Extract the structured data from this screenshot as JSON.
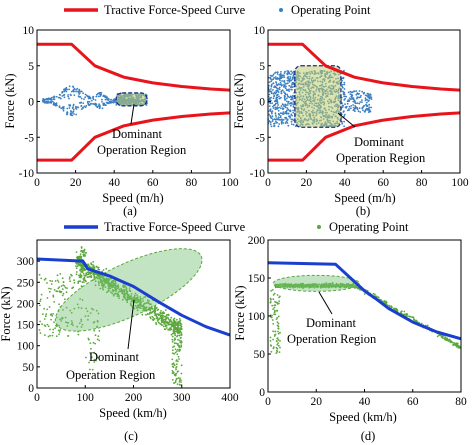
{
  "legend_top": {
    "curve_label": "Tractive Force-Speed Curve",
    "point_label": "Operating Point",
    "curve_color": "#e8141c",
    "point_color": "#3a7fc1"
  },
  "legend_bottom": {
    "curve_label": "Tractive Force-Speed Curve",
    "point_label": "Operating Point",
    "curve_color": "#1a3fcf",
    "point_color": "#5aa83a"
  },
  "chart_data": [
    {
      "panel": "(a)",
      "type": "line",
      "xlabel": "Speed (m/h)",
      "ylabel": "Force (kN)",
      "xlim": [
        0,
        100
      ],
      "ylim": [
        -10,
        10
      ],
      "xticks": [
        "0",
        "20",
        "40",
        "60",
        "80",
        "100"
      ],
      "yticks": [
        "-10",
        "-5",
        "0",
        "5",
        "10"
      ],
      "series": [
        {
          "name": "Tractive Force-Speed Curve",
          "kind": "upper",
          "x": [
            0,
            18,
            30,
            45,
            60,
            75,
            90,
            100
          ],
          "y": [
            8.0,
            8.0,
            5.0,
            3.4,
            2.6,
            2.1,
            1.75,
            1.6
          ]
        },
        {
          "name": "Tractive Force-Speed Curve",
          "kind": "lower",
          "x": [
            0,
            18,
            30,
            45,
            60,
            75,
            90,
            100
          ],
          "y": [
            -8.2,
            -8.2,
            -5.0,
            -3.4,
            -2.6,
            -2.1,
            -1.75,
            -1.6
          ]
        }
      ],
      "operating_points_region": {
        "x": [
          3,
          55
        ],
        "y": [
          -2.3,
          2.2
        ]
      },
      "dominant_region": {
        "x": [
          41,
          57
        ],
        "y": [
          -0.6,
          1.2
        ]
      },
      "annotation": {
        "line1": "Dominant",
        "line2": "Operation Region"
      },
      "caption": "(a)",
      "grid": false
    },
    {
      "panel": "(b)",
      "type": "line",
      "xlabel": "Speed (m/h)",
      "ylabel": "Force (kN)",
      "xlim": [
        0,
        100
      ],
      "ylim": [
        -10,
        10
      ],
      "xticks": [
        "0",
        "20",
        "40",
        "60",
        "80",
        "100"
      ],
      "yticks": [
        "-10",
        "-5",
        "0",
        "5",
        "10"
      ],
      "series": [
        {
          "name": "Tractive Force-Speed Curve",
          "kind": "upper",
          "x": [
            0,
            18,
            30,
            45,
            60,
            75,
            90,
            100
          ],
          "y": [
            8.0,
            8.0,
            5.0,
            3.4,
            2.6,
            2.1,
            1.75,
            1.6
          ]
        },
        {
          "name": "Tractive Force-Speed Curve",
          "kind": "lower",
          "x": [
            0,
            18,
            30,
            45,
            60,
            75,
            90,
            100
          ],
          "y": [
            -8.2,
            -8.2,
            -5.0,
            -3.4,
            -2.6,
            -2.1,
            -1.75,
            -1.6
          ]
        }
      ],
      "operating_points_region": {
        "x": [
          0,
          55
        ],
        "y": [
          -3.6,
          4.6
        ]
      },
      "dominant_region": {
        "x": [
          14,
          38
        ],
        "y": [
          -3.6,
          5.0
        ]
      },
      "annotation": {
        "line1": "Dominant",
        "line2": "Operation Region"
      },
      "caption": "(b)",
      "grid": false
    },
    {
      "panel": "(c)",
      "type": "line",
      "xlabel": "Speed (km/h)",
      "ylabel": "Force (kN)",
      "xlim": [
        0,
        400
      ],
      "ylim": [
        0,
        350
      ],
      "xticks": [
        "0",
        "100",
        "200",
        "300",
        "400"
      ],
      "yticks": [
        "0",
        "50",
        "100",
        "150",
        "200",
        "250",
        "300"
      ],
      "series": [
        {
          "name": "Tractive Force-Speed Curve",
          "x": [
            0,
            95,
            105,
            150,
            200,
            250,
            300,
            350,
            400
          ],
          "y": [
            305,
            300,
            282,
            265,
            240,
            205,
            172,
            145,
            125
          ]
        }
      ],
      "operating_points_region": {
        "x": [
          5,
          300
        ],
        "y": [
          5,
          340
        ]
      },
      "dominant_region": {
        "center": [
          190,
          232
        ],
        "angle_deg": -25
      },
      "annotation": {
        "line1": "Dominant",
        "line2": "Operation Region"
      },
      "caption": "(c)",
      "grid": false
    },
    {
      "panel": "(d)",
      "type": "line",
      "xlabel": "Speed (km/h)",
      "ylabel": "Force (kN)",
      "xlim": [
        0,
        80
      ],
      "ylim": [
        0,
        200
      ],
      "xticks": [
        "0",
        "20",
        "40",
        "60",
        "80"
      ],
      "yticks": [
        "0",
        "50",
        "100",
        "150",
        "200"
      ],
      "series": [
        {
          "name": "Tractive Force-Speed Curve",
          "x": [
            0,
            28,
            40,
            45,
            50,
            60,
            70,
            80
          ],
          "y": [
            170,
            168,
            133,
            122,
            110,
            92,
            79,
            70
          ]
        }
      ],
      "operating_points_region": {
        "x": [
          1,
          80
        ],
        "y": [
          50,
          150
        ]
      },
      "dominant_region": {
        "center": [
          20,
          143
        ],
        "angle_deg": 0
      },
      "annotation": {
        "line1": "Dominant",
        "line2": "Operation Region"
      },
      "caption": "(d)",
      "grid": false
    }
  ]
}
